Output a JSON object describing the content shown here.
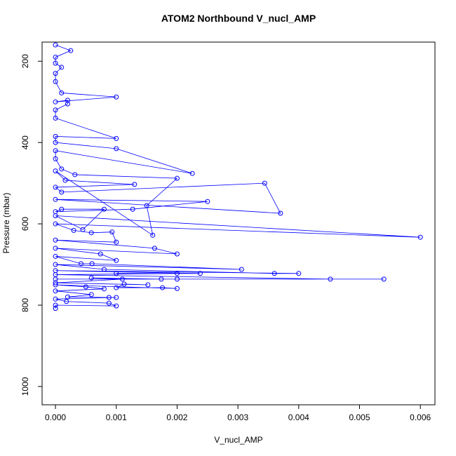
{
  "chart_data": {
    "type": "line",
    "title": "ATOM2 Northbound V_nucl_AMP",
    "xlabel": "V_nucl_AMP",
    "ylabel": "Pressure (mbar)",
    "color": "#0000ff",
    "markers": true,
    "y_reversed": true,
    "xlim": [
      -0.00022,
      0.00624
    ],
    "ylim": [
      153,
      1045
    ],
    "xticks": [
      {
        "value": 0,
        "label": "0.000"
      },
      {
        "value": 0.001,
        "label": "0.001"
      },
      {
        "value": 0.002,
        "label": "0.002"
      },
      {
        "value": 0.003,
        "label": "0.003"
      },
      {
        "value": 0.004,
        "label": "0.004"
      },
      {
        "value": 0.005,
        "label": "0.005"
      },
      {
        "value": 0.006,
        "label": "0.006"
      }
    ],
    "yticks": [
      200,
      400,
      600,
      800,
      1000
    ],
    "x": [
      0,
      0.00025,
      0,
      0,
      0.0001,
      0,
      0,
      0.0001,
      0.001,
      0,
      0.0002,
      0.0002,
      0,
      0,
      0.001,
      0,
      0,
      0.001,
      0.00225,
      0,
      0,
      0.0001,
      0.00032,
      0.002,
      0.0015,
      0.0016,
      0,
      0.00016,
      0.0013,
      0,
      0.0001,
      0.00344,
      0.0037,
      0,
      0.0025,
      0.00127,
      0,
      0.0001,
      0.0008,
      0.00045,
      0,
      0.006,
      0,
      0.0003,
      0.00059,
      0.00093,
      0.001,
      0,
      0.00163,
      0.002,
      0,
      0.00074,
      0.001,
      0,
      0.00042,
      0.0006,
      0.00306,
      0,
      0.0008,
      0.0036,
      0.004,
      0,
      0.00238,
      0.001,
      0.002,
      0,
      0.00452,
      0.0054,
      0,
      0.002,
      0.00174,
      0.00059,
      0.0011,
      0,
      0.00152,
      0.00113,
      0.001,
      0.00176,
      0.002,
      0,
      0.0005,
      0.0008,
      0,
      0.00059,
      0.0002,
      0.00088,
      0.001,
      0,
      0.00018,
      0.00088,
      0.001,
      0,
      0
    ],
    "y": [
      160,
      174,
      190,
      205,
      215,
      230,
      250,
      278,
      288,
      300,
      296,
      305,
      320,
      340,
      390,
      385,
      400,
      415,
      476,
      420,
      440,
      465,
      479,
      488,
      555,
      628,
      470,
      493,
      503,
      510,
      522,
      500,
      574,
      540,
      545,
      564,
      570,
      564,
      564,
      614,
      580,
      633,
      600,
      616,
      622,
      620,
      645,
      640,
      660,
      674,
      660,
      674,
      690,
      680,
      698,
      698,
      712,
      700,
      712,
      722,
      722,
      715,
      722,
      722,
      722,
      725,
      736,
      736,
      736,
      736,
      736,
      733,
      736,
      745,
      750,
      748,
      757,
      757,
      759,
      750,
      755,
      760,
      765,
      774,
      780,
      781,
      781,
      785,
      791,
      795,
      802,
      800,
      808
    ]
  }
}
